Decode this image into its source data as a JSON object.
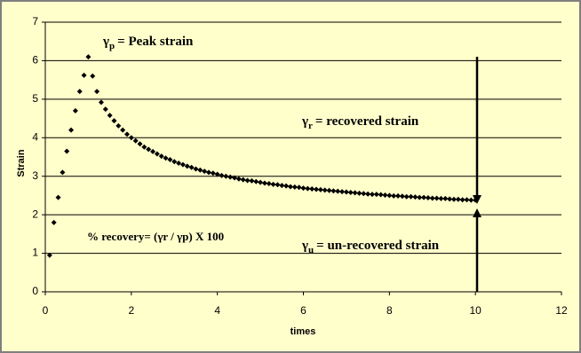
{
  "chart_data": {
    "type": "scatter",
    "xlabel": "times",
    "ylabel": "Strain",
    "x": [
      0.1,
      0.2,
      0.3,
      0.4,
      0.5,
      0.6,
      0.7,
      0.8,
      0.9,
      1.0,
      1.1,
      1.2,
      1.3,
      1.4,
      1.5,
      1.6,
      1.7,
      1.8,
      1.9,
      2.0,
      2.1,
      2.2,
      2.3,
      2.4,
      2.5,
      2.6,
      2.7,
      2.8,
      2.9,
      3.0,
      3.1,
      3.2,
      3.3,
      3.4,
      3.5,
      3.6,
      3.7,
      3.8,
      3.9,
      4.0,
      4.1,
      4.2,
      4.3,
      4.4,
      4.5,
      4.6,
      4.7,
      4.8,
      4.9,
      5.0,
      5.1,
      5.2,
      5.3,
      5.4,
      5.5,
      5.6,
      5.7,
      5.8,
      5.9,
      6.0,
      6.1,
      6.2,
      6.3,
      6.4,
      6.5,
      6.6,
      6.7,
      6.8,
      6.9,
      7.0,
      7.1,
      7.2,
      7.3,
      7.4,
      7.5,
      7.6,
      7.7,
      7.8,
      7.9,
      8.0,
      8.1,
      8.2,
      8.3,
      8.4,
      8.5,
      8.6,
      8.7,
      8.8,
      8.9,
      9.0,
      9.1,
      9.2,
      9.3,
      9.4,
      9.5,
      9.6,
      9.7,
      9.8,
      9.9,
      10.0
    ],
    "values": [
      0.95,
      1.8,
      2.45,
      3.1,
      3.65,
      4.2,
      4.7,
      5.2,
      5.62,
      6.1,
      5.6,
      5.2,
      4.92,
      4.74,
      4.58,
      4.44,
      4.31,
      4.2,
      4.09,
      4.0,
      3.92,
      3.84,
      3.76,
      3.7,
      3.64,
      3.58,
      3.52,
      3.47,
      3.43,
      3.38,
      3.34,
      3.3,
      3.26,
      3.23,
      3.19,
      3.16,
      3.13,
      3.1,
      3.08,
      3.05,
      3.02,
      3.0,
      2.98,
      2.96,
      2.93,
      2.91,
      2.89,
      2.88,
      2.86,
      2.84,
      2.82,
      2.81,
      2.79,
      2.78,
      2.76,
      2.75,
      2.73,
      2.72,
      2.71,
      2.69,
      2.68,
      2.67,
      2.66,
      2.65,
      2.64,
      2.63,
      2.62,
      2.61,
      2.6,
      2.59,
      2.58,
      2.57,
      2.56,
      2.55,
      2.54,
      2.53,
      2.53,
      2.52,
      2.51,
      2.5,
      2.49,
      2.49,
      2.48,
      2.47,
      2.47,
      2.46,
      2.45,
      2.45,
      2.44,
      2.43,
      2.43,
      2.42,
      2.42,
      2.41,
      2.4,
      2.4,
      2.39,
      2.39,
      2.38,
      2.38
    ],
    "color": "#000000",
    "xlim": [
      0,
      12
    ],
    "ylim": [
      0,
      7
    ],
    "xticks": [
      0,
      2,
      4,
      6,
      8,
      10,
      12
    ],
    "yticks": [
      0,
      1,
      2,
      3,
      4,
      5,
      6,
      7
    ],
    "grid": true,
    "annotations": [
      {
        "symbol": "γ",
        "subscript": "p",
        "text": "= Peak  strain"
      },
      {
        "symbol": "γ",
        "subscript": "r",
        "text": "= recovered strain"
      },
      {
        "text": "% recovery= (γr /  γp) X 100"
      },
      {
        "symbol": "γ",
        "subscript": "u",
        "text": "= un-recovered strain"
      }
    ]
  }
}
